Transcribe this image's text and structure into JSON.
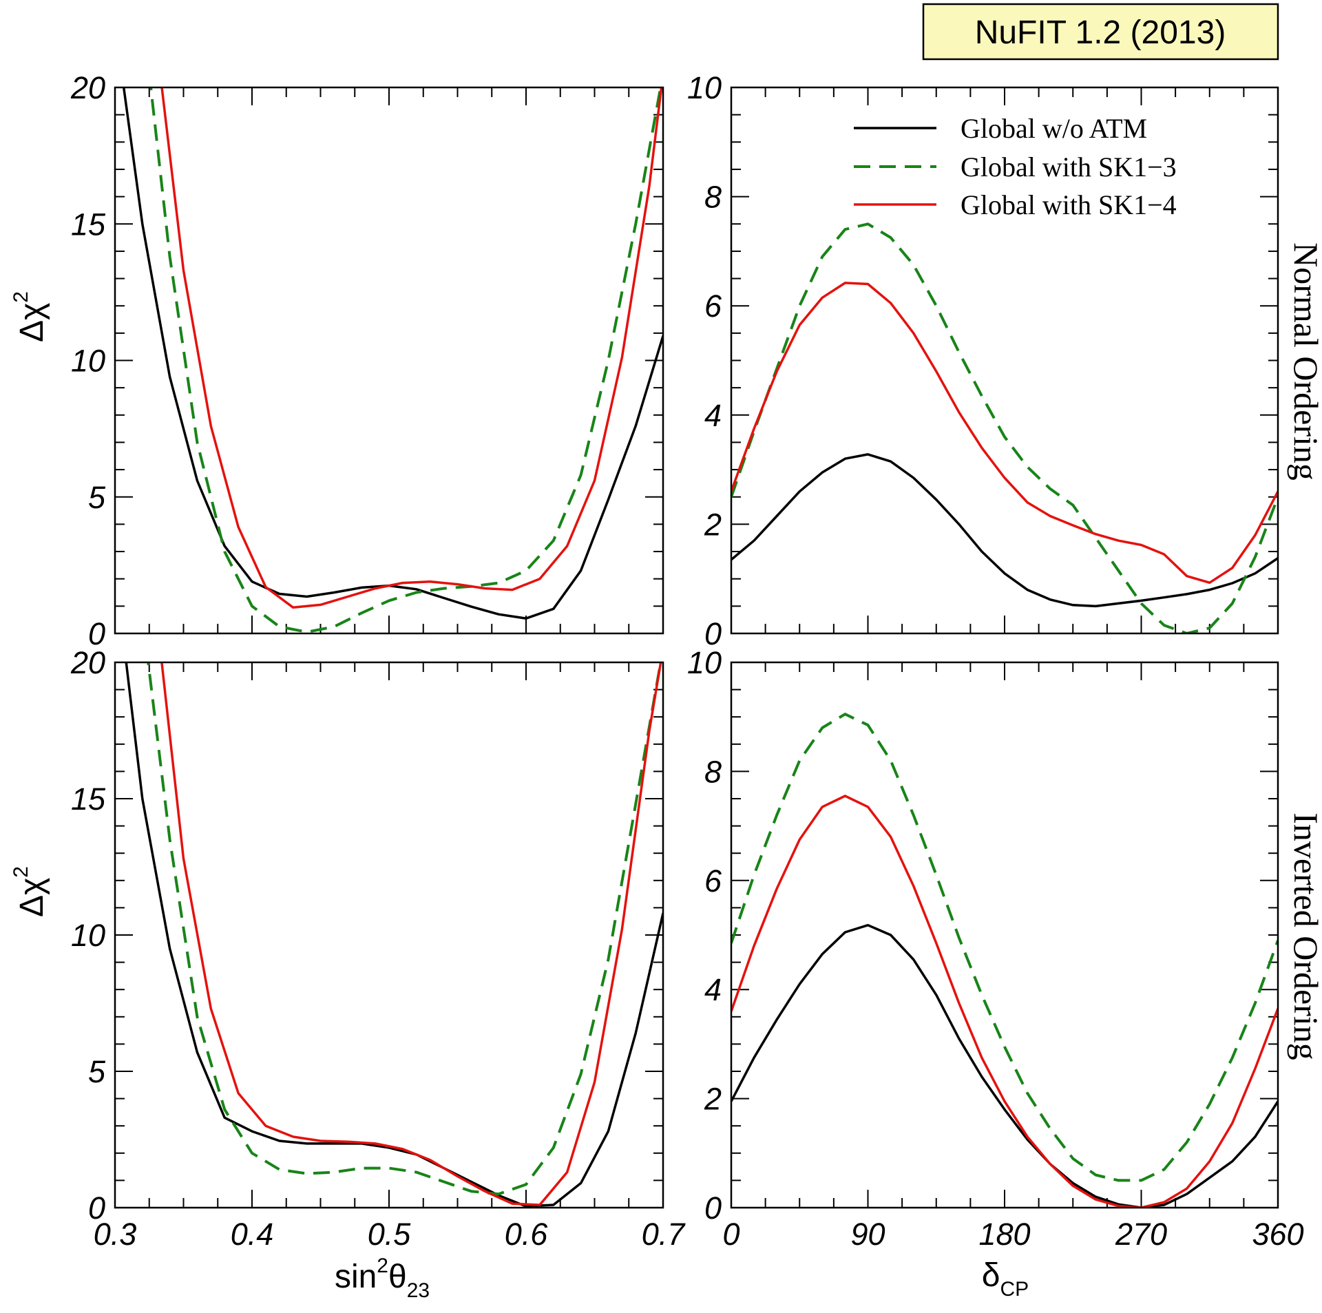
{
  "badge": {
    "text": "NuFIT 1.2 (2013)",
    "bg": "#fbf8bc"
  },
  "legend": {
    "items": [
      {
        "label": "Global w/o ATM",
        "color": "#000000",
        "dash": "solid"
      },
      {
        "label": "Global with SK1−3",
        "color": "#188418",
        "dash": "dashed"
      },
      {
        "label": "Global with SK1−4",
        "color": "#e4120e",
        "dash": "solid"
      }
    ]
  },
  "row_labels": {
    "top": "Normal Ordering",
    "bottom": "Inverted Ordering"
  },
  "axes": {
    "left_ylabel": {
      "base": "Δχ",
      "sup": "2"
    },
    "left_xlabel": {
      "base": "sin",
      "sup": "2",
      "theta": "θ",
      "sub": "23"
    },
    "right_xlabel": {
      "base": "δ",
      "sub": "CP"
    },
    "left_xticks": [
      "0.3",
      "0.4",
      "0.5",
      "0.6",
      "0.7"
    ],
    "left_yticks": [
      "0",
      "5",
      "10",
      "15",
      "20"
    ],
    "right_xticks": [
      "0",
      "90",
      "180",
      "270",
      "360"
    ],
    "right_yticks": [
      "0",
      "2",
      "4",
      "6",
      "8",
      "10"
    ]
  },
  "chart_data": [
    {
      "type": "line",
      "title": "",
      "row": "Normal Ordering",
      "xlabel": "sin^2 theta_23",
      "ylabel": "Delta chi^2",
      "xlim": [
        0.3,
        0.7
      ],
      "ylim": [
        0,
        20
      ],
      "series": [
        {
          "name": "Global w/o ATM",
          "x": [
            0.305,
            0.32,
            0.34,
            0.36,
            0.38,
            0.4,
            0.42,
            0.44,
            0.46,
            0.48,
            0.5,
            0.52,
            0.54,
            0.56,
            0.58,
            0.6,
            0.62,
            0.64,
            0.66,
            0.68,
            0.7
          ],
          "y": [
            20.5,
            15.0,
            9.4,
            5.6,
            3.2,
            1.9,
            1.45,
            1.35,
            1.5,
            1.68,
            1.75,
            1.62,
            1.3,
            0.98,
            0.7,
            0.55,
            0.9,
            2.3,
            4.9,
            7.6,
            10.9
          ]
        },
        {
          "name": "Global with SK1−3",
          "x": [
            0.325,
            0.34,
            0.36,
            0.38,
            0.4,
            0.42,
            0.44,
            0.46,
            0.48,
            0.5,
            0.52,
            0.54,
            0.56,
            0.58,
            0.6,
            0.62,
            0.64,
            0.66,
            0.68,
            0.7
          ],
          "y": [
            20.5,
            13.8,
            7.0,
            3.0,
            1.0,
            0.25,
            0.05,
            0.25,
            0.75,
            1.2,
            1.5,
            1.65,
            1.72,
            1.85,
            2.3,
            3.4,
            5.8,
            10.0,
            15.0,
            20.5
          ]
        },
        {
          "name": "Global with SK1−4",
          "x": [
            0.333,
            0.35,
            0.37,
            0.39,
            0.41,
            0.43,
            0.45,
            0.47,
            0.49,
            0.51,
            0.53,
            0.55,
            0.57,
            0.59,
            0.61,
            0.63,
            0.65,
            0.67,
            0.69,
            0.7
          ],
          "y": [
            20.5,
            13.3,
            7.6,
            3.9,
            1.7,
            0.95,
            1.05,
            1.35,
            1.65,
            1.85,
            1.9,
            1.8,
            1.65,
            1.6,
            2.0,
            3.2,
            5.6,
            10.1,
            16.4,
            20.5
          ]
        }
      ]
    },
    {
      "type": "line",
      "title": "",
      "row": "Normal Ordering",
      "xlabel": "delta_CP",
      "ylabel": "",
      "xlim": [
        0,
        360
      ],
      "ylim": [
        0,
        10
      ],
      "series": [
        {
          "name": "Global w/o ATM",
          "x": [
            0,
            15,
            30,
            45,
            60,
            75,
            90,
            105,
            120,
            135,
            150,
            165,
            180,
            195,
            210,
            225,
            240,
            255,
            270,
            285,
            300,
            315,
            330,
            345,
            360
          ],
          "y": [
            1.35,
            1.7,
            2.15,
            2.6,
            2.95,
            3.2,
            3.28,
            3.15,
            2.85,
            2.45,
            2.0,
            1.5,
            1.1,
            0.8,
            0.62,
            0.52,
            0.5,
            0.55,
            0.6,
            0.66,
            0.72,
            0.8,
            0.92,
            1.1,
            1.38
          ]
        },
        {
          "name": "Global with SK1−3",
          "x": [
            0,
            15,
            30,
            45,
            60,
            75,
            90,
            105,
            120,
            135,
            150,
            165,
            180,
            195,
            210,
            225,
            240,
            255,
            270,
            285,
            300,
            315,
            330,
            345,
            360
          ],
          "y": [
            2.5,
            3.7,
            4.85,
            6.0,
            6.9,
            7.4,
            7.5,
            7.25,
            6.75,
            6.0,
            5.15,
            4.35,
            3.6,
            3.05,
            2.65,
            2.35,
            1.75,
            1.15,
            0.55,
            0.15,
            0.0,
            0.1,
            0.55,
            1.4,
            2.5
          ]
        },
        {
          "name": "Global with SK1−4",
          "x": [
            0,
            15,
            30,
            45,
            60,
            75,
            90,
            105,
            120,
            135,
            150,
            165,
            180,
            195,
            210,
            225,
            240,
            255,
            270,
            285,
            300,
            315,
            330,
            345,
            360
          ],
          "y": [
            2.6,
            3.75,
            4.8,
            5.65,
            6.15,
            6.42,
            6.4,
            6.05,
            5.5,
            4.8,
            4.05,
            3.4,
            2.85,
            2.4,
            2.15,
            1.98,
            1.82,
            1.7,
            1.62,
            1.45,
            1.05,
            0.93,
            1.2,
            1.8,
            2.6
          ]
        }
      ]
    },
    {
      "type": "line",
      "title": "",
      "row": "Inverted Ordering",
      "xlabel": "sin^2 theta_23",
      "ylabel": "Delta chi^2",
      "xlim": [
        0.3,
        0.7
      ],
      "ylim": [
        0,
        20
      ],
      "series": [
        {
          "name": "Global w/o ATM",
          "x": [
            0.307,
            0.32,
            0.34,
            0.36,
            0.38,
            0.4,
            0.42,
            0.44,
            0.46,
            0.48,
            0.5,
            0.52,
            0.54,
            0.56,
            0.58,
            0.6,
            0.62,
            0.64,
            0.66,
            0.68,
            0.7
          ],
          "y": [
            20.5,
            15.0,
            9.5,
            5.7,
            3.3,
            2.8,
            2.45,
            2.35,
            2.35,
            2.35,
            2.2,
            1.95,
            1.45,
            0.95,
            0.45,
            0.05,
            0.1,
            0.9,
            2.8,
            6.4,
            10.8
          ]
        },
        {
          "name": "Global with SK1−3",
          "x": [
            0.323,
            0.34,
            0.36,
            0.38,
            0.4,
            0.42,
            0.44,
            0.46,
            0.48,
            0.5,
            0.52,
            0.54,
            0.56,
            0.58,
            0.6,
            0.62,
            0.64,
            0.66,
            0.68,
            0.7
          ],
          "y": [
            20.5,
            13.5,
            7.0,
            3.6,
            2.0,
            1.4,
            1.25,
            1.3,
            1.45,
            1.45,
            1.3,
            0.95,
            0.6,
            0.5,
            0.85,
            2.2,
            4.9,
            9.1,
            14.8,
            20.5
          ]
        },
        {
          "name": "Global with SK1−4",
          "x": [
            0.333,
            0.35,
            0.37,
            0.39,
            0.41,
            0.43,
            0.45,
            0.47,
            0.49,
            0.51,
            0.53,
            0.55,
            0.57,
            0.59,
            0.61,
            0.63,
            0.65,
            0.67,
            0.69,
            0.7
          ],
          "y": [
            20.5,
            12.8,
            7.3,
            4.2,
            3.0,
            2.6,
            2.45,
            2.42,
            2.35,
            2.15,
            1.75,
            1.15,
            0.6,
            0.15,
            0.1,
            1.3,
            4.6,
            10.2,
            17.5,
            20.5
          ]
        }
      ]
    },
    {
      "type": "line",
      "title": "",
      "row": "Inverted Ordering",
      "xlabel": "delta_CP",
      "ylabel": "",
      "xlim": [
        0,
        360
      ],
      "ylim": [
        0,
        10
      ],
      "series": [
        {
          "name": "Global w/o ATM",
          "x": [
            0,
            15,
            30,
            45,
            60,
            75,
            90,
            105,
            120,
            135,
            150,
            165,
            180,
            195,
            210,
            225,
            240,
            255,
            270,
            285,
            300,
            315,
            330,
            345,
            360
          ],
          "y": [
            1.95,
            2.75,
            3.45,
            4.1,
            4.65,
            5.05,
            5.18,
            5.0,
            4.55,
            3.9,
            3.1,
            2.4,
            1.8,
            1.25,
            0.8,
            0.45,
            0.2,
            0.06,
            0.0,
            0.05,
            0.25,
            0.55,
            0.85,
            1.3,
            1.95
          ]
        },
        {
          "name": "Global with SK1−3",
          "x": [
            0,
            15,
            30,
            45,
            60,
            75,
            90,
            105,
            120,
            135,
            150,
            165,
            180,
            195,
            210,
            225,
            240,
            255,
            270,
            285,
            300,
            315,
            330,
            345,
            360
          ],
          "y": [
            4.85,
            6.1,
            7.2,
            8.2,
            8.8,
            9.05,
            8.85,
            8.2,
            7.2,
            6.1,
            4.95,
            3.9,
            2.95,
            2.1,
            1.45,
            0.9,
            0.6,
            0.5,
            0.5,
            0.7,
            1.2,
            1.9,
            2.75,
            3.75,
            4.9
          ]
        },
        {
          "name": "Global with SK1−4",
          "x": [
            0,
            15,
            30,
            45,
            60,
            75,
            90,
            105,
            120,
            135,
            150,
            165,
            180,
            195,
            210,
            225,
            240,
            255,
            270,
            285,
            300,
            315,
            330,
            345,
            360
          ],
          "y": [
            3.6,
            4.8,
            5.85,
            6.75,
            7.35,
            7.55,
            7.35,
            6.8,
            5.9,
            4.85,
            3.75,
            2.75,
            1.95,
            1.3,
            0.8,
            0.4,
            0.15,
            0.03,
            0.0,
            0.1,
            0.35,
            0.85,
            1.55,
            2.55,
            3.65
          ]
        }
      ]
    }
  ]
}
